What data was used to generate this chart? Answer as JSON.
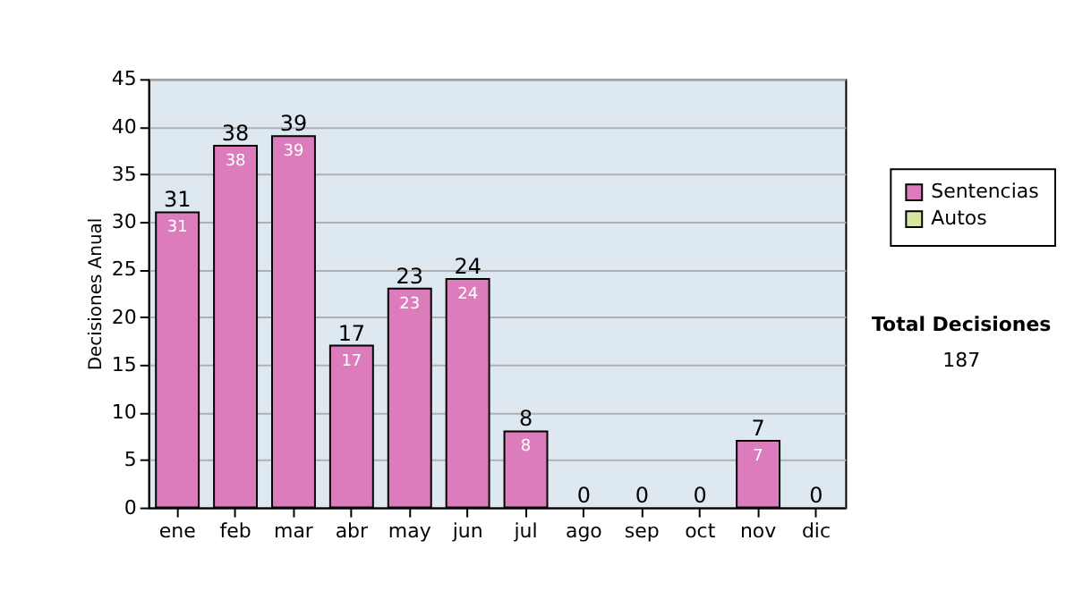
{
  "chart_data": {
    "type": "bar",
    "stacked": true,
    "ylabel": "Decisiones Anual",
    "categories": [
      "ene",
      "feb",
      "mar",
      "abr",
      "may",
      "jun",
      "jul",
      "ago",
      "sep",
      "oct",
      "nov",
      "dic"
    ],
    "series": [
      {
        "name": "Sentencias",
        "color": "#dc7cbc",
        "values": [
          31,
          38,
          39,
          17,
          23,
          24,
          8,
          0,
          0,
          0,
          7,
          0
        ],
        "value_labels": [
          "31",
          "38",
          "39",
          "17",
          "23",
          "24",
          "8",
          null,
          null,
          null,
          "7",
          null
        ]
      },
      {
        "name": "Autos",
        "color": "#d4e6a0",
        "values": [
          0,
          0,
          0,
          0,
          0,
          0,
          0,
          0,
          0,
          0,
          0,
          0
        ]
      }
    ],
    "totals": [
      "31",
      "38",
      "39",
      "17",
      "23",
      "24",
      "8",
      "0",
      "0",
      "0",
      "7",
      "0"
    ],
    "ylim": [
      0,
      45
    ],
    "yticks": [
      0,
      5,
      10,
      15,
      20,
      25,
      30,
      35,
      40,
      45
    ],
    "grid": "y",
    "legend": "right",
    "annotations": [
      "Total Decisiones",
      "187"
    ]
  }
}
